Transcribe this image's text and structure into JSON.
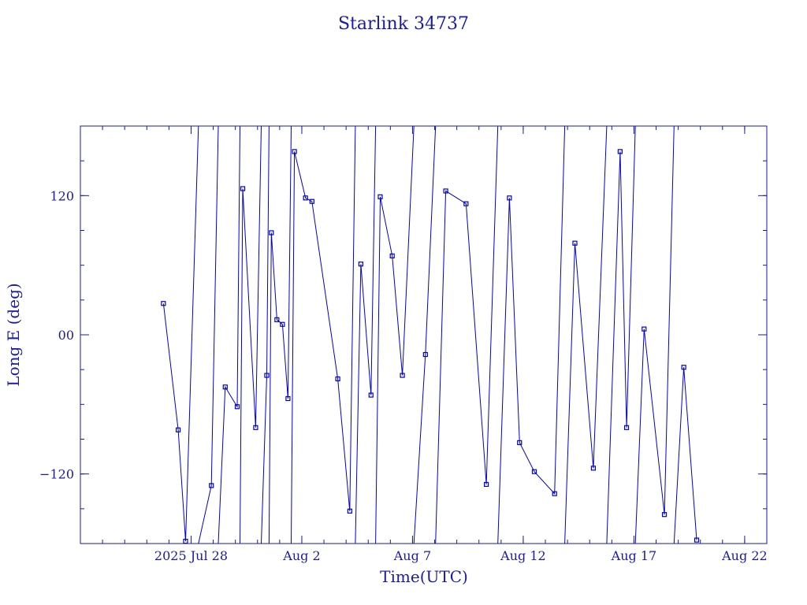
{
  "chart_data": {
    "type": "line",
    "title": "Starlink 34737",
    "xlabel": "Time(UTC)",
    "ylabel": "Long E (deg)",
    "color": "#0000cc",
    "grid": false,
    "legend": "none",
    "xlim": [
      "2025-07-23",
      "2025-08-23"
    ],
    "ylim": [
      -180,
      180
    ],
    "x_ticks": [
      {
        "date": "2025-07-28",
        "label": "2025 Jul 28"
      },
      {
        "date": "2025-08-02",
        "label": "Aug  2"
      },
      {
        "date": "2025-08-07",
        "label": "Aug  7"
      },
      {
        "date": "2025-08-12",
        "label": "Aug 12"
      },
      {
        "date": "2025-08-17",
        "label": "Aug 17"
      },
      {
        "date": "2025-08-22",
        "label": "Aug 22"
      }
    ],
    "y_ticks": [
      {
        "value": -120,
        "label": "−120"
      },
      {
        "value": 0,
        "label": "00"
      },
      {
        "value": 120,
        "label": "120"
      }
    ],
    "series": [
      {
        "x": [
          "2025-07-26T18:00",
          "2025-07-27T10:00",
          "2025-07-27T18:00",
          "2025-07-28T22:00",
          "2025-07-29T13:00",
          "2025-07-30T02:00",
          "2025-07-30T08:00",
          "2025-07-30T22:00",
          "2025-07-31T10:00",
          "2025-07-31T15:00",
          "2025-07-31T21:00",
          "2025-08-01T03:00",
          "2025-08-01T09:00",
          "2025-08-01T16:00",
          "2025-08-02T04:00",
          "2025-08-02T11:00",
          "2025-08-03T15:00",
          "2025-08-04T04:00",
          "2025-08-04T16:00",
          "2025-08-05T03:00",
          "2025-08-05T13:00",
          "2025-08-06T02:00",
          "2025-08-06T13:00",
          "2025-08-07T14:00",
          "2025-08-08T12:00",
          "2025-08-09T10:00",
          "2025-08-10T08:00",
          "2025-08-11T09:00",
          "2025-08-11T20:00",
          "2025-08-12T12:00",
          "2025-08-13T10:00",
          "2025-08-14T08:00",
          "2025-08-15T04:00",
          "2025-08-16T09:00",
          "2025-08-16T16:00",
          "2025-08-17T11:00",
          "2025-08-18T09:00",
          "2025-08-19T06:00",
          "2025-08-19T20:00"
        ],
        "y": [
          27,
          -82,
          -178,
          -130,
          -45,
          -62,
          126,
          -80,
          -35,
          88,
          13,
          9,
          -55,
          158,
          118,
          115,
          -38,
          -152,
          61,
          -52,
          119,
          68,
          -35,
          -17,
          124,
          113,
          -129,
          118,
          -93,
          -118,
          -137,
          79,
          -115,
          158,
          -80,
          5,
          -155,
          -28,
          -177
        ]
      }
    ]
  }
}
